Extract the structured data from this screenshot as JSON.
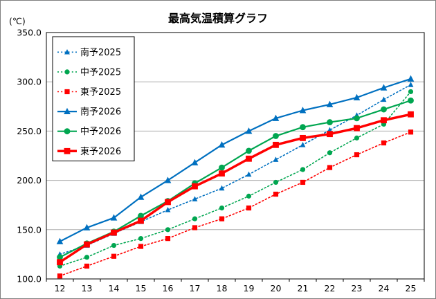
{
  "title": "最高気温積算グラフ",
  "y_unit_label": "(℃)",
  "chart_data": {
    "type": "line",
    "x": [
      12,
      13,
      14,
      15,
      16,
      17,
      18,
      19,
      20,
      21,
      22,
      23,
      24,
      25
    ],
    "ylim": [
      100,
      350
    ],
    "ytick_step": 50,
    "grid": "horizontal",
    "legend_position": "top-left-inside",
    "series": [
      {
        "id": "nanyo-2025",
        "name": "南予2025",
        "color": "#0070C0",
        "marker": "triangle",
        "line": "dotted",
        "width": 1.6,
        "values": [
          125,
          134,
          146,
          158,
          170,
          181,
          192,
          206,
          221,
          236,
          251,
          266,
          282,
          297
        ]
      },
      {
        "id": "chuyo-2025",
        "name": "中予2025",
        "color": "#00A650",
        "marker": "circle",
        "line": "dotted",
        "width": 1.6,
        "values": [
          113,
          122,
          134,
          141,
          150,
          161,
          172,
          184,
          198,
          211,
          228,
          243,
          257,
          290
        ]
      },
      {
        "id": "toyo-2025",
        "name": "東予2025",
        "color": "#FF0000",
        "marker": "square",
        "line": "dotted",
        "width": 1.6,
        "values": [
          103,
          113,
          123,
          133,
          141,
          152,
          161,
          172,
          186,
          198,
          213,
          226,
          238,
          249
        ]
      },
      {
        "id": "nanyo-2026",
        "name": "南予2026",
        "color": "#0070C0",
        "marker": "triangle",
        "line": "solid",
        "width": 2.2,
        "values": [
          138,
          152,
          162,
          183,
          200,
          218,
          236,
          250,
          263,
          271,
          277,
          284,
          294,
          303
        ]
      },
      {
        "id": "chuyo-2026",
        "name": "中予2026",
        "color": "#00A650",
        "marker": "circle",
        "line": "solid",
        "width": 2.2,
        "values": [
          122,
          136,
          148,
          164,
          179,
          197,
          213,
          230,
          245,
          254,
          259,
          263,
          272,
          281
        ]
      },
      {
        "id": "toyo-2026",
        "name": "東予2026",
        "color": "#FF0000",
        "marker": "square",
        "line": "solid",
        "width": 3.5,
        "values": [
          117,
          135,
          147,
          159,
          178,
          194,
          207,
          222,
          236,
          243,
          247,
          253,
          261,
          267
        ]
      }
    ]
  }
}
